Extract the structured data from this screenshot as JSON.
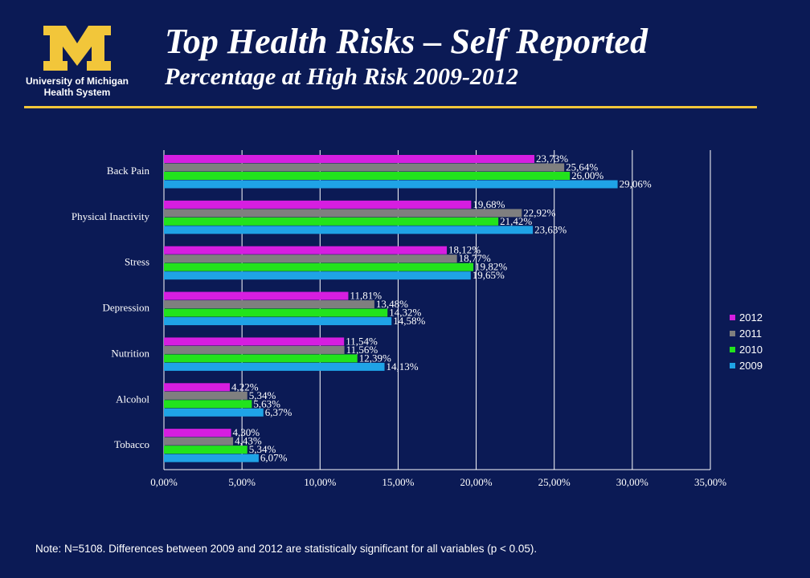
{
  "logo": {
    "line1": "University of Michigan",
    "line2": "Health System",
    "color": "#f2c63a"
  },
  "header": {
    "title": "Top Health Risks – Self Reported",
    "subtitle": "Percentage at High Risk 2009-2012"
  },
  "note": "Note: N=5108.  Differences between 2009 and 2012 are statistically significant for all variables (p < 0.05).",
  "chart_data": {
    "type": "bar",
    "orientation": "horizontal",
    "categories": [
      "Back Pain",
      "Physical Inactivity",
      "Stress",
      "Depression",
      "Nutrition",
      "Alcohol",
      "Tobacco"
    ],
    "series": [
      {
        "name": "2012",
        "color": "#d61ee0",
        "values": [
          23.73,
          19.68,
          18.12,
          11.81,
          11.54,
          4.22,
          4.3
        ],
        "labels": [
          "23,73%",
          "19,68%",
          "18,12%",
          "11,81%",
          "11,54%",
          "4,22%",
          "4,30%"
        ]
      },
      {
        "name": "2011",
        "color": "#7f7f7f",
        "values": [
          25.64,
          22.92,
          18.77,
          13.48,
          11.56,
          5.34,
          4.43
        ],
        "labels": [
          "25,64%",
          "22,92%",
          "18,77%",
          "13,48%",
          "11,56%",
          "5,34%",
          "4,43%"
        ]
      },
      {
        "name": "2010",
        "color": "#22e31c",
        "values": [
          26.0,
          21.42,
          19.82,
          14.32,
          12.39,
          5.63,
          5.34
        ],
        "labels": [
          "26,00%",
          "21,42%",
          "19,82%",
          "14,32%",
          "12,39%",
          "5,63%",
          "5,34%"
        ]
      },
      {
        "name": "2009",
        "color": "#1fa3e6",
        "values": [
          29.06,
          23.63,
          19.65,
          14.58,
          14.13,
          6.37,
          6.07
        ],
        "labels": [
          "29,06%",
          "23,63%",
          "19,65%",
          "14,58%",
          "14,13%",
          "6,37%",
          "6,07%"
        ]
      }
    ],
    "xlim": [
      0,
      35
    ],
    "xticks": [
      0,
      5,
      10,
      15,
      20,
      25,
      30,
      35
    ],
    "xtick_labels": [
      "0,00%",
      "5,00%",
      "10,00%",
      "15,00%",
      "20,00%",
      "25,00%",
      "30,00%",
      "35,00%"
    ],
    "grid": true,
    "legend_position": "right"
  }
}
